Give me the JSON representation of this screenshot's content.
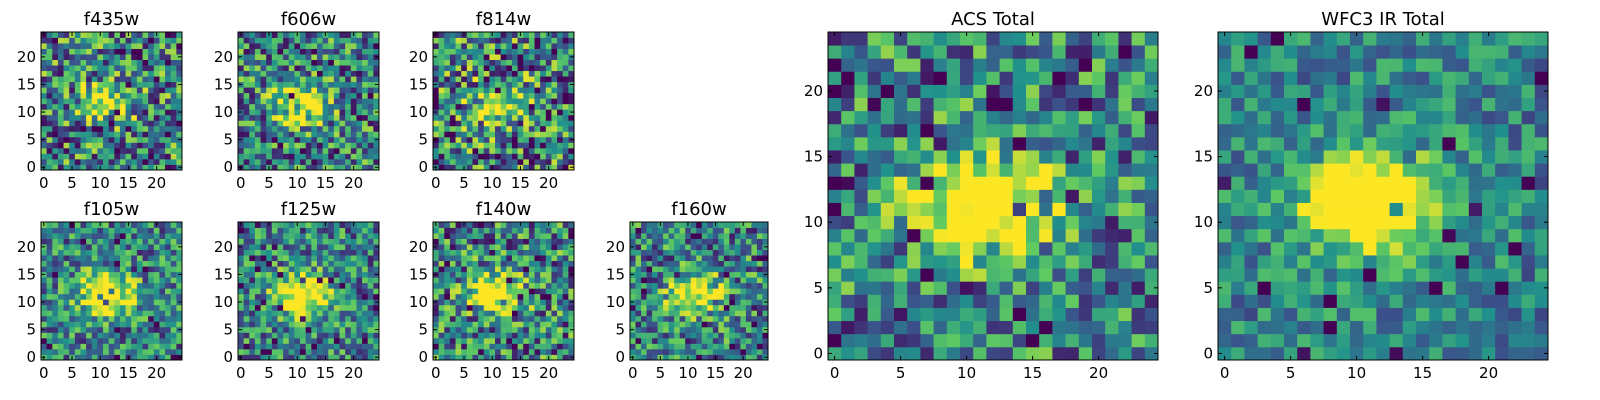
{
  "colormap": [
    "#440154",
    "#3b528b",
    "#21918c",
    "#5ec962",
    "#fde725"
  ],
  "chart_data": [
    {
      "type": "heatmap",
      "title": "f435w",
      "grid_size": 25,
      "xticks": [
        0,
        5,
        10,
        15,
        20
      ],
      "yticks": [
        0,
        5,
        10,
        15,
        20
      ],
      "xlim": [
        -0.5,
        24.5
      ],
      "ylim": [
        -0.5,
        24.5
      ],
      "values": [],
      "source": "f435w"
    },
    {
      "type": "heatmap",
      "title": "f606w",
      "grid_size": 25,
      "xticks": [
        0,
        5,
        10,
        15,
        20
      ],
      "yticks": [
        0,
        5,
        10,
        15,
        20
      ],
      "xlim": [
        -0.5,
        24.5
      ],
      "ylim": [
        -0.5,
        24.5
      ],
      "values": [],
      "source": "f606w"
    },
    {
      "type": "heatmap",
      "title": "f814w",
      "grid_size": 25,
      "xticks": [
        0,
        5,
        10,
        15,
        20
      ],
      "yticks": [
        0,
        5,
        10,
        15,
        20
      ],
      "xlim": [
        -0.5,
        24.5
      ],
      "ylim": [
        -0.5,
        24.5
      ],
      "values": [],
      "source": "f814w"
    },
    {
      "type": "heatmap",
      "title": "f105w",
      "grid_size": 25,
      "xticks": [
        0,
        5,
        10,
        15,
        20
      ],
      "yticks": [
        0,
        5,
        10,
        15,
        20
      ],
      "xlim": [
        -0.5,
        24.5
      ],
      "ylim": [
        -0.5,
        24.5
      ],
      "values": [],
      "source": "f105w"
    },
    {
      "type": "heatmap",
      "title": "f125w",
      "grid_size": 25,
      "xticks": [
        0,
        5,
        10,
        15,
        20
      ],
      "yticks": [
        0,
        5,
        10,
        15,
        20
      ],
      "xlim": [
        -0.5,
        24.5
      ],
      "ylim": [
        -0.5,
        24.5
      ],
      "values": [],
      "source": "f125w"
    },
    {
      "type": "heatmap",
      "title": "f140w",
      "grid_size": 25,
      "xticks": [
        0,
        5,
        10,
        15,
        20
      ],
      "yticks": [
        0,
        5,
        10,
        15,
        20
      ],
      "xlim": [
        -0.5,
        24.5
      ],
      "ylim": [
        -0.5,
        24.5
      ],
      "values": [],
      "source": "f140w"
    },
    {
      "type": "heatmap",
      "title": "f160w",
      "grid_size": 25,
      "xticks": [
        0,
        5,
        10,
        15,
        20
      ],
      "yticks": [
        0,
        5,
        10,
        15,
        20
      ],
      "xlim": [
        -0.5,
        24.5
      ],
      "ylim": [
        -0.5,
        24.5
      ],
      "values": [],
      "source": "f160w"
    },
    {
      "type": "heatmap",
      "title": "ACS Total",
      "grid_size": 25,
      "xticks": [
        0,
        5,
        10,
        15,
        20
      ],
      "yticks": [
        0,
        5,
        10,
        15,
        20
      ],
      "xlim": [
        -0.5,
        24.5
      ],
      "ylim": [
        -0.5,
        24.5
      ],
      "values": [],
      "source": "acs"
    },
    {
      "type": "heatmap",
      "title": "WFC3 IR Total",
      "grid_size": 25,
      "xticks": [
        0,
        5,
        10,
        15,
        20
      ],
      "yticks": [
        0,
        5,
        10,
        15,
        20
      ],
      "xlim": [
        -0.5,
        24.5
      ],
      "ylim": [
        -0.5,
        24.5
      ],
      "values": [],
      "source": "wfc3"
    }
  ]
}
